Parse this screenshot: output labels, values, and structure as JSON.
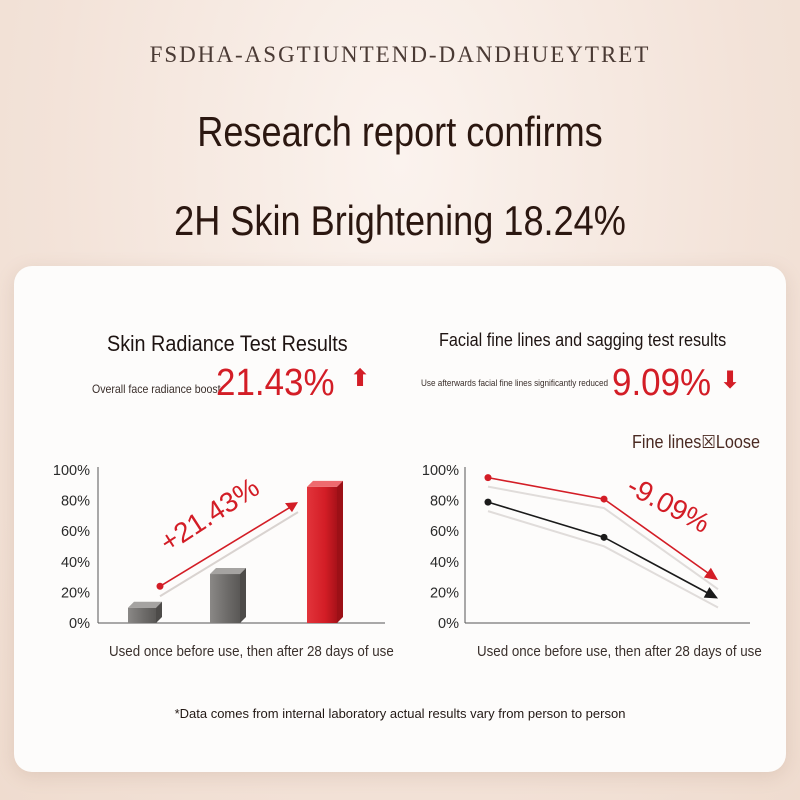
{
  "brand": "FSDHA-ASGTIUNTEND-DANDHUEYTRET",
  "headline_1": "Research report confirms",
  "headline_2": "2H Skin Brightening 18.24%",
  "left": {
    "title": "Skin Radiance Test Results",
    "subtitle": "Overall face radiance boost",
    "big_value": "21.43%",
    "caption": "Used once before use, then after 28 days of use"
  },
  "right": {
    "title": "Facial fine lines and sagging test results",
    "subtitle": "Use afterwards facial fine lines significantly reduced",
    "big_value": "9.09%",
    "caption": "Used once before use, then after 28 days of use"
  },
  "footnote": "*Data comes from internal laboratory actual results vary from person to person",
  "colors": {
    "accent_red": "#d31d26",
    "bar_gray": "#7a7775",
    "dark_line": "#1a1a1a"
  },
  "icons": {
    "up": "arrow-up-icon",
    "down": "arrow-down-icon"
  },
  "chart_data": [
    {
      "type": "bar",
      "title": "Skin Radiance Test Results",
      "categories": [
        "",
        "",
        ""
      ],
      "values": [
        10,
        32,
        89
      ],
      "bar_colors": [
        "#7a7775",
        "#7a7775",
        "#d31d26"
      ],
      "ylim": [
        0,
        100
      ],
      "yticks": [
        "0%",
        "20%",
        "40%",
        "60%",
        "80%",
        "100%"
      ],
      "annotation": "+21.43%",
      "trend_line": [
        24,
        79
      ]
    },
    {
      "type": "line",
      "title": "Facial fine lines and sagging test results",
      "x": [
        0,
        1,
        2
      ],
      "ylim": [
        0,
        100
      ],
      "yticks": [
        "0%",
        "20%",
        "40%",
        "60%",
        "80%",
        "100%"
      ],
      "legend": "Fine lines\u0000Loose",
      "legend_text": "Fine lines☒Loose",
      "series": [
        {
          "color": "#d31d26",
          "values": [
            95,
            81,
            28
          ]
        },
        {
          "color": "#1a1a1a",
          "values": [
            79,
            56,
            16
          ]
        }
      ],
      "annotation": "-9.09%"
    }
  ]
}
